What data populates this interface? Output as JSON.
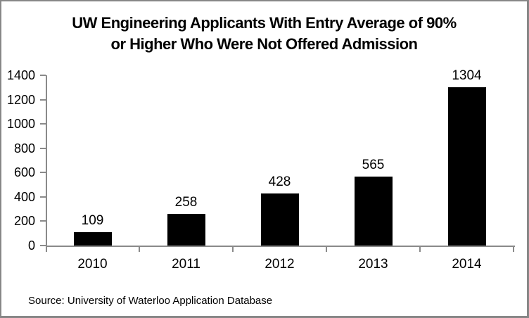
{
  "window": {
    "background": "#ffffff",
    "border_color": "#878787"
  },
  "title": {
    "line1": "UW Engineering Applicants With Entry Average of 90%",
    "line2": "or Higher Who Were Not Offered Admission"
  },
  "source_note": "Source: University of Waterloo Application Database",
  "chart_data": {
    "type": "bar",
    "title": "UW Engineering Applicants With Entry Average of 90% or Higher Who Were Not Offered Admission",
    "categories": [
      "2010",
      "2011",
      "2012",
      "2013",
      "2014"
    ],
    "values": [
      109,
      258,
      428,
      565,
      1304
    ],
    "data_labels": [
      "109",
      "258",
      "428",
      "565",
      "1304"
    ],
    "xlabel": "",
    "ylabel": "",
    "ylim": [
      0,
      1400
    ],
    "yticks": [
      0,
      200,
      400,
      600,
      800,
      1000,
      1200,
      1400
    ],
    "grid": false,
    "legend": false,
    "bar_color": "#000000",
    "axis_color": "#8a8a8a",
    "annotation": "Source: University of Waterloo Application Database"
  }
}
